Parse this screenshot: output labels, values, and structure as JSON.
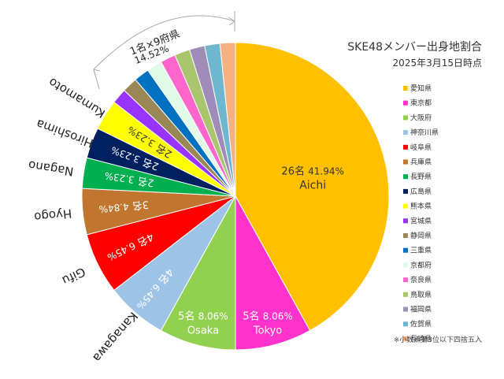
{
  "chart_data": {
    "type": "pie",
    "title": "SKE48メンバー出身地割合",
    "subtitle": "2025年3月15日時点",
    "footnote": "※小数点第3位以下四捨五入",
    "start_angle_deg": 0,
    "direction": "clockwise",
    "slices": [
      {
        "name": "愛知県",
        "value": 26,
        "percent": 41.94,
        "color": "#FFC000",
        "label_count": "26名",
        "label_pct": "41.94%",
        "label_en": "Aichi",
        "label_color": "#333333"
      },
      {
        "name": "東京都",
        "value": 5,
        "percent": 8.06,
        "color": "#FF33CC",
        "label_count": "5名",
        "label_pct": "8.06%",
        "label_en": "Tokyo",
        "label_color": "#ffffff"
      },
      {
        "name": "大阪府",
        "value": 5,
        "percent": 8.06,
        "color": "#92D050",
        "label_count": "5名",
        "label_pct": "8.06%",
        "label_en": "Osaka",
        "label_color": "#ffffff"
      },
      {
        "name": "神奈川県",
        "value": 4,
        "percent": 6.45,
        "color": "#9DC3E6",
        "label_count": "4名",
        "label_pct": "6.45%",
        "label_en": "Kanagawa",
        "label_color": "#ffffff"
      },
      {
        "name": "岐阜県",
        "value": 4,
        "percent": 6.45,
        "color": "#FF0000",
        "label_count": "4名",
        "label_pct": "6.45%",
        "label_en": "Gifu",
        "label_color": "#ffffff"
      },
      {
        "name": "兵庫県",
        "value": 3,
        "percent": 4.84,
        "color": "#C0762F",
        "label_count": "3名",
        "label_pct": "4.84%",
        "label_en": "Hyogo",
        "label_color": "#ffffff"
      },
      {
        "name": "長野県",
        "value": 2,
        "percent": 3.23,
        "color": "#00B050",
        "label_count": "2名",
        "label_pct": "3.23%",
        "label_en": "Nagano",
        "label_color": "#ffffff"
      },
      {
        "name": "広島県",
        "value": 2,
        "percent": 3.23,
        "color": "#002060",
        "label_count": "2名",
        "label_pct": "3.23%",
        "label_en": "Hiroshima",
        "label_color": "#ffffff"
      },
      {
        "name": "熊本県",
        "value": 2,
        "percent": 3.23,
        "color": "#FFFF00",
        "label_count": "2名",
        "label_pct": "3.23%",
        "label_en": "Kumamoto",
        "label_color": "#333333"
      },
      {
        "name": "宮城県",
        "value": 1,
        "percent": 1.61,
        "color": "#9933FF",
        "label_count": "",
        "label_pct": "",
        "label_en": "",
        "label_color": "#ffffff"
      },
      {
        "name": "静岡県",
        "value": 1,
        "percent": 1.61,
        "color": "#998855",
        "label_count": "",
        "label_pct": "",
        "label_en": "",
        "label_color": "#ffffff"
      },
      {
        "name": "三重県",
        "value": 1,
        "percent": 1.61,
        "color": "#0070C0",
        "label_count": "",
        "label_pct": "",
        "label_en": "",
        "label_color": "#ffffff"
      },
      {
        "name": "京都府",
        "value": 1,
        "percent": 1.61,
        "color": "#E2FBE8",
        "label_count": "",
        "label_pct": "",
        "label_en": "",
        "label_color": "#ffffff"
      },
      {
        "name": "奈良県",
        "value": 1,
        "percent": 1.61,
        "color": "#FF66CC",
        "label_count": "",
        "label_pct": "",
        "label_en": "",
        "label_color": "#ffffff"
      },
      {
        "name": "鳥取県",
        "value": 1,
        "percent": 1.61,
        "color": "#A9C66E",
        "label_count": "",
        "label_pct": "",
        "label_en": "",
        "label_color": "#ffffff"
      },
      {
        "name": "福岡県",
        "value": 1,
        "percent": 1.61,
        "color": "#A08CB8",
        "label_count": "",
        "label_pct": "",
        "label_en": "",
        "label_color": "#ffffff"
      },
      {
        "name": "佐賀県",
        "value": 1,
        "percent": 1.61,
        "color": "#6FB7CF",
        "label_count": "",
        "label_pct": "",
        "label_en": "",
        "label_color": "#ffffff"
      },
      {
        "name": "長崎県",
        "value": 1,
        "percent": 1.61,
        "color": "#F4B183",
        "label_count": "",
        "label_pct": "",
        "label_en": "",
        "label_color": "#ffffff"
      }
    ],
    "group_annotation": {
      "label": "1名×9府県",
      "percent": "14.52%"
    },
    "legend_position": "right"
  }
}
